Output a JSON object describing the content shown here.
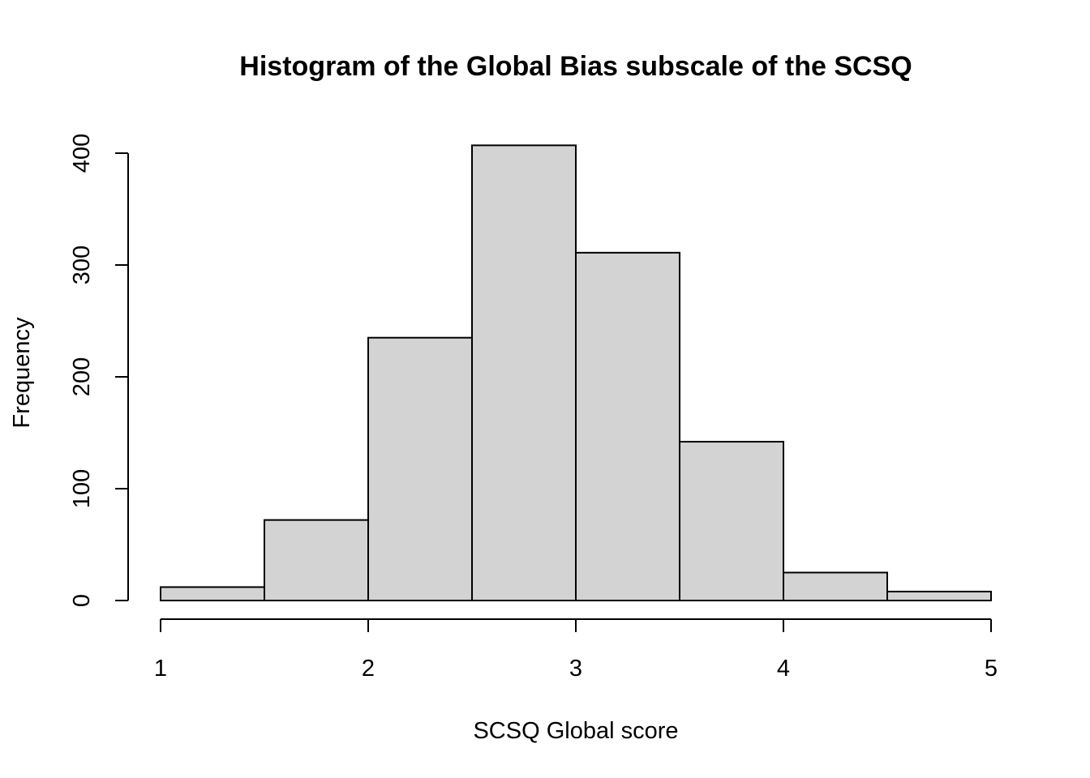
{
  "chart_data": {
    "type": "bar",
    "title": "Histogram of the Global Bias subscale of the SCSQ",
    "xlabel": "SCSQ Global score",
    "ylabel": "Frequency",
    "bins": [
      {
        "start": 1.0,
        "end": 1.5,
        "count": 12
      },
      {
        "start": 1.5,
        "end": 2.0,
        "count": 72
      },
      {
        "start": 2.0,
        "end": 2.5,
        "count": 235
      },
      {
        "start": 2.5,
        "end": 3.0,
        "count": 407
      },
      {
        "start": 3.0,
        "end": 3.5,
        "count": 311
      },
      {
        "start": 3.5,
        "end": 4.0,
        "count": 142
      },
      {
        "start": 4.0,
        "end": 4.5,
        "count": 25
      },
      {
        "start": 4.5,
        "end": 5.0,
        "count": 8
      }
    ],
    "xlim": [
      1,
      5
    ],
    "ylim": [
      0,
      400
    ],
    "xticks": [
      1,
      2,
      3,
      4,
      5
    ],
    "yticks": [
      0,
      100,
      200,
      300,
      400
    ],
    "bar_color": "#d3d3d3",
    "grid": false,
    "legend": "none"
  }
}
